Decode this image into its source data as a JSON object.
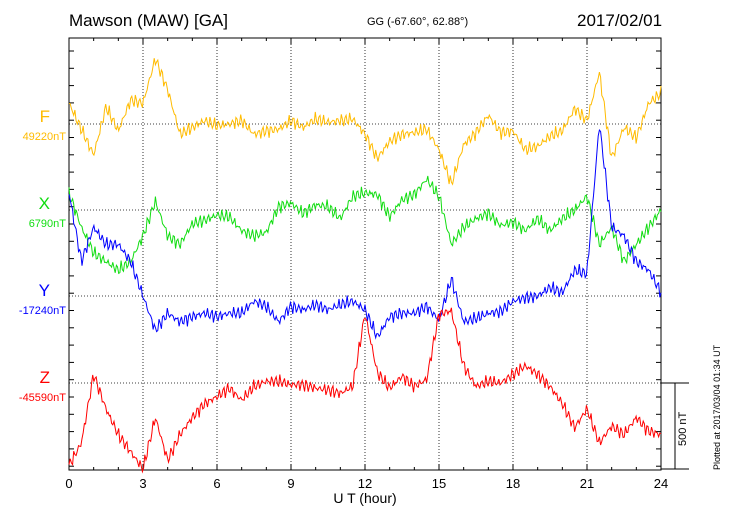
{
  "header": {
    "station": "Mawson (MAW)  [GA]",
    "coords": "GG (-67.60°,  62.88°)",
    "date": "2017/02/01"
  },
  "footer": {
    "xlabel": "U T (hour)",
    "plotted": "Plotted at 2017/03/04 01:34  UT",
    "scale": "500 nT"
  },
  "components": [
    {
      "name": "F",
      "baseline": "49220nT",
      "color": "#ffbb00"
    },
    {
      "name": "X",
      "baseline": "6790nT",
      "color": "#11dd11"
    },
    {
      "name": "Y",
      "baseline": "-17240nT",
      "color": "#0000ff"
    },
    {
      "name": "Z",
      "baseline": "-45590nT",
      "color": "#ff0000"
    }
  ],
  "chart_data": {
    "type": "line",
    "title": "Mawson (MAW)  [GA]",
    "xlabel": "U T (hour)",
    "xlim": [
      0,
      24
    ],
    "x_ticks": [
      0,
      3,
      6,
      9,
      12,
      15,
      18,
      21,
      24
    ],
    "grid": true,
    "scale_bar_nT": 500,
    "x": [
      0,
      0.5,
      1,
      1.5,
      2,
      2.5,
      3,
      3.5,
      4,
      4.5,
      5,
      5.5,
      6,
      6.5,
      7,
      7.5,
      8,
      8.5,
      9,
      9.5,
      10,
      10.5,
      11,
      11.5,
      12,
      12.5,
      13,
      13.5,
      14,
      14.5,
      15,
      15.5,
      16,
      16.5,
      17,
      17.5,
      18,
      18.5,
      19,
      19.5,
      20,
      20.5,
      21,
      21.5,
      22,
      22.5,
      23,
      23.5,
      24
    ],
    "series": [
      {
        "name": "F",
        "baseline_nT": 49220,
        "values": [
          120,
          -30,
          -180,
          100,
          -40,
          140,
          120,
          380,
          200,
          -60,
          -20,
          20,
          -10,
          0,
          20,
          -60,
          -40,
          -30,
          20,
          -20,
          30,
          10,
          20,
          30,
          -60,
          -200,
          -100,
          -60,
          -50,
          -30,
          -150,
          -350,
          -120,
          -50,
          50,
          -50,
          -40,
          -150,
          -130,
          -70,
          -40,
          90,
          20,
          300,
          -200,
          -20,
          -80,
          120,
          180
        ]
      },
      {
        "name": "X",
        "baseline_nT": 6790,
        "values": [
          100,
          -100,
          -250,
          -300,
          -350,
          -300,
          -150,
          50,
          -150,
          -200,
          -80,
          -60,
          -30,
          -40,
          -120,
          -150,
          -130,
          20,
          40,
          -20,
          30,
          20,
          -50,
          80,
          100,
          90,
          -40,
          60,
          90,
          180,
          80,
          -200,
          -100,
          -50,
          -20,
          -90,
          -70,
          -120,
          -50,
          -120,
          -50,
          0,
          80,
          -200,
          -100,
          -300,
          -200,
          -100,
          0
        ]
      },
      {
        "name": "Y",
        "baseline_nT": -17240,
        "values": [
          600,
          200,
          400,
          300,
          300,
          200,
          0,
          -200,
          -100,
          -150,
          -120,
          -100,
          -120,
          -100,
          -100,
          -30,
          -60,
          -150,
          -60,
          -80,
          -50,
          -80,
          -50,
          -30,
          -80,
          -240,
          -120,
          -100,
          -100,
          -60,
          -140,
          100,
          -150,
          -130,
          -100,
          -90,
          -30,
          -10,
          0,
          50,
          20,
          150,
          130,
          1000,
          400,
          350,
          200,
          150,
          20
        ]
      },
      {
        "name": "Z",
        "baseline_nT": -45590,
        "values": [
          -480,
          -350,
          50,
          -150,
          -300,
          -400,
          -500,
          -200,
          -450,
          -300,
          -200,
          -120,
          -80,
          -30,
          -100,
          -20,
          10,
          10,
          -10,
          -10,
          -30,
          -40,
          -60,
          -20,
          400,
          60,
          -30,
          40,
          -20,
          20,
          400,
          420,
          100,
          -20,
          10,
          0,
          50,
          100,
          50,
          -20,
          -120,
          -260,
          -150,
          -350,
          -250,
          -300,
          -200,
          -280,
          -300
        ]
      }
    ]
  }
}
